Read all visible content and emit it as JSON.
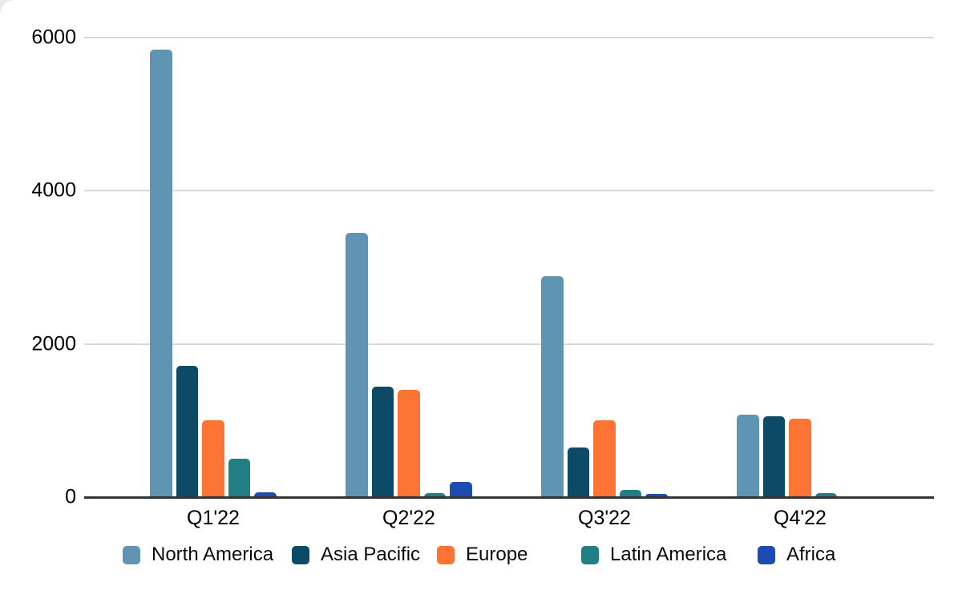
{
  "chart_data": {
    "type": "bar",
    "title": "",
    "xlabel": "",
    "ylabel": "",
    "categories": [
      "Q1'22",
      "Q2'22",
      "Q3'22",
      "Q4'22"
    ],
    "series": [
      {
        "name": "North America",
        "color": "#5f95b2",
        "values": [
          5840,
          3450,
          2880,
          1080
        ]
      },
      {
        "name": "Asia Pacific",
        "color": "#0d4a66",
        "values": [
          1710,
          1440,
          650,
          1060
        ]
      },
      {
        "name": "Europe",
        "color": "#fd7434",
        "values": [
          1000,
          1400,
          1000,
          1020
        ]
      },
      {
        "name": "Latin America",
        "color": "#217e84",
        "values": [
          500,
          50,
          95,
          55
        ]
      },
      {
        "name": "Africa",
        "color": "#1c4cb2",
        "values": [
          65,
          200,
          45,
          0
        ]
      }
    ],
    "y_axis": {
      "ticks": [
        0,
        2000,
        4000,
        6000
      ],
      "tick_labels": [
        "0",
        "2000",
        "4000",
        "6000"
      ],
      "ylim": [
        0,
        6000
      ]
    },
    "grid": true,
    "legend_position": "bottom"
  },
  "colors": {
    "background": "#ffffff",
    "corner_backdrop": "#e8eaed",
    "gridline": "#d8d8d8",
    "axis": "#333333",
    "text": "#000000"
  }
}
